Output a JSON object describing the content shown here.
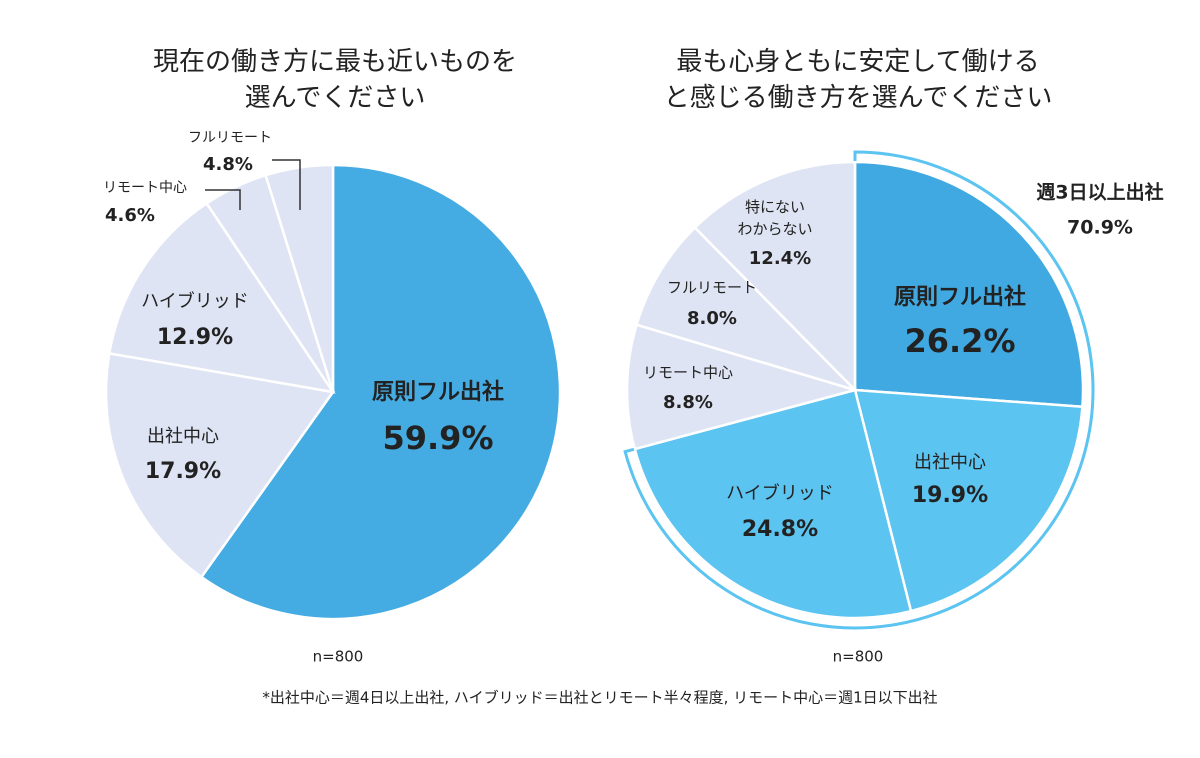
{
  "chart_data": [
    {
      "type": "pie",
      "title": "現在の働き方に最も近いものを\n選んでください",
      "categories": [
        "原則フル出社",
        "出社中心",
        "ハイブリッド",
        "リモート中心",
        "フルリモート"
      ],
      "values": [
        59.9,
        17.9,
        12.9,
        4.6,
        4.8
      ],
      "value_labels": [
        "59.9%",
        "17.9%",
        "12.9%",
        "4.6%",
        "4.8%"
      ],
      "colors": [
        "#45ace3",
        "#dfe4f4",
        "#dfe4f4",
        "#dfe4f4",
        "#dfe4f4"
      ],
      "note": "n=800"
    },
    {
      "type": "pie",
      "title": "最も心身ともに安定して働ける\nと感じる働き方を選んでください",
      "categories": [
        "原則フル出社",
        "出社中心",
        "ハイブリッド",
        "リモート中心",
        "フルリモート",
        "特にない\nわからない"
      ],
      "values": [
        26.2,
        19.9,
        24.8,
        8.8,
        8.0,
        12.4
      ],
      "value_labels": [
        "26.2%",
        "19.9%",
        "24.8%",
        "8.8%",
        "8.0%",
        "12.4%"
      ],
      "colors": [
        "#41a9e1",
        "#5cc4f0",
        "#5cc4f0",
        "#dfe4f4",
        "#dfe4f4",
        "#dfe4f4"
      ],
      "note": "n=800",
      "annotation": {
        "text": "週3日以上出社",
        "value": 70.9,
        "value_label": "70.9%"
      }
    }
  ],
  "footnote": "*出社中心＝週4日以上出社, ハイブリッド＝出社とリモート半々程度, リモート中心＝週1日以下出社"
}
